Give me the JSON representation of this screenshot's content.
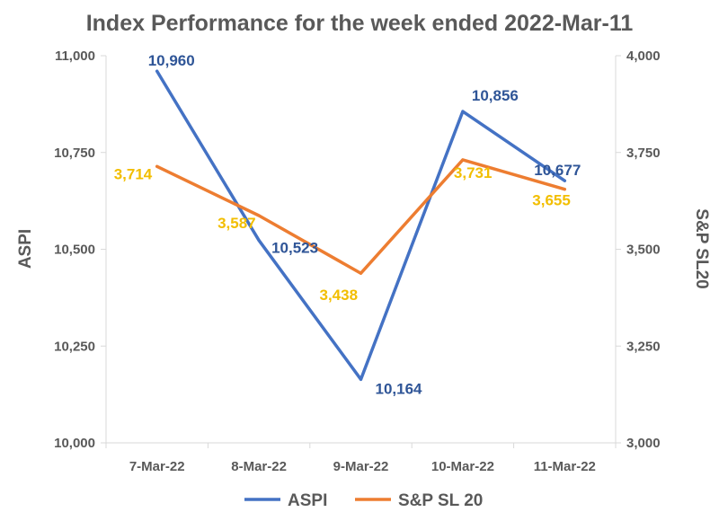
{
  "chart_data": {
    "type": "line",
    "title": "Index Performance for the week ended 2022-Mar-11",
    "categories": [
      "7-Mar-22",
      "8-Mar-22",
      "9-Mar-22",
      "10-Mar-22",
      "11-Mar-22"
    ],
    "series": [
      {
        "name": "ASPI",
        "axis": "left",
        "color": "#4472C4",
        "label_color": "#2F5597",
        "values": [
          10960,
          10523,
          10164,
          10856,
          10677
        ],
        "labels": [
          "10,960",
          "10,523",
          "10,164",
          "10,856",
          "10,677"
        ]
      },
      {
        "name": "S&P SL 20",
        "axis": "right",
        "color": "#ED7D31",
        "label_color": "#F2BE00",
        "values": [
          3714,
          3587,
          3438,
          3731,
          3655
        ],
        "labels": [
          "3,714",
          "3,587",
          "3,438",
          "3,731",
          "3,655"
        ]
      }
    ],
    "y_left": {
      "label": "ASPI",
      "range": [
        10000,
        11000
      ],
      "ticks": [
        "10,000",
        "10,250",
        "10,500",
        "10,750",
        "11,000"
      ],
      "tick_values": [
        10000,
        10250,
        10500,
        10750,
        11000
      ]
    },
    "y_right": {
      "label": "S&P SL20",
      "range": [
        3000,
        4000
      ],
      "ticks": [
        "3,000",
        "3,250",
        "3,500",
        "3,750",
        "4,000"
      ],
      "tick_values": [
        3000,
        3250,
        3500,
        3750,
        4000
      ]
    },
    "grid": false,
    "legend_position": "bottom"
  }
}
